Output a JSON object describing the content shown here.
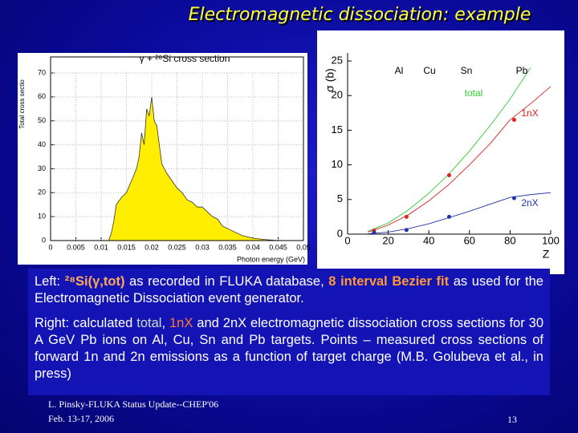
{
  "title": "Electromagnetic dissociation: example",
  "chart_data": [
    {
      "type": "area",
      "title": "γ + ²⁸Si cross section",
      "ylabel": "Total cross sectio",
      "xlabel": "Photon energy (GeV)",
      "color": "#ffee00",
      "grid": true,
      "x": [
        0.0115,
        0.012,
        0.0125,
        0.013,
        0.014,
        0.015,
        0.016,
        0.017,
        0.0175,
        0.018,
        0.0185,
        0.019,
        0.0195,
        0.02,
        0.0205,
        0.021,
        0.0215,
        0.022,
        0.023,
        0.024,
        0.025,
        0.026,
        0.027,
        0.028,
        0.029,
        0.03,
        0.031,
        0.032,
        0.033,
        0.034,
        0.035,
        0.036,
        0.038,
        0.04,
        0.042,
        0.045
      ],
      "values": [
        0,
        3,
        8,
        15,
        18,
        20,
        25,
        30,
        35,
        45,
        40,
        55,
        52,
        60,
        50,
        48,
        40,
        32,
        28,
        25,
        22,
        20,
        17,
        16,
        14,
        14,
        12,
        10,
        9,
        6,
        5,
        4,
        2,
        1,
        0.5,
        0
      ],
      "xlim": [
        0,
        0.05
      ],
      "xticks": [
        0,
        0.005,
        0.01,
        0.015,
        0.02,
        0.025,
        0.03,
        0.035,
        0.04,
        0.045,
        0.05
      ],
      "ylim": [
        0,
        70
      ],
      "yticks": [
        0,
        10,
        20,
        30,
        40,
        50,
        60,
        70
      ]
    },
    {
      "type": "line",
      "ylabel": "σ (b)",
      "xlabel": "Z",
      "annotations": [
        "Al",
        "Cu",
        "Sn",
        "Pb"
      ],
      "x": [
        10,
        20,
        30,
        40,
        50,
        60,
        70,
        80,
        90,
        100
      ],
      "points_x": [
        13,
        29,
        50,
        82
      ],
      "series": [
        {
          "name": "total",
          "color": "#33cc33",
          "values": [
            0.4,
            1.6,
            3.5,
            5.9,
            8.7,
            12,
            15.6,
            19.5,
            24,
            null
          ]
        },
        {
          "name": "1nX",
          "color": "#dd2222",
          "values": [
            0.3,
            1.3,
            2.8,
            4.8,
            7.2,
            10,
            13,
            16.5,
            18.8,
            21.3
          ],
          "points": [
            0.5,
            2.5,
            8.5,
            16.5
          ]
        },
        {
          "name": "2nX",
          "color": "#2233aa",
          "values": [
            0.05,
            0.3,
            0.8,
            1.5,
            2.4,
            3.3,
            4.3,
            5.3,
            5.7,
            6
          ],
          "points": [
            0.2,
            0.6,
            2.5,
            5.2
          ]
        }
      ],
      "xlim": [
        0,
        100
      ],
      "xticks": [
        0,
        20,
        40,
        60,
        80,
        100
      ],
      "ylim": [
        0,
        25
      ],
      "yticks": [
        0,
        5,
        10,
        15,
        20,
        25
      ]
    }
  ],
  "left_text": [
    "Left: ",
    "²⁸Si(γ,tot)",
    " as recorded in FLUKA database, ",
    "8 interval Bezier fit",
    " as used for the Electromagnetic Dissociation event generator."
  ],
  "right_text": [
    "Right: calculated ",
    "total",
    ", ",
    "1nX",
    " and 2nX electromagnetic dissociation cross sections for 30 A GeV Pb ions on Al, Cu, Sn and Pb targets. Points – measured cross sections of forward 1n and 2n emissions as a function of target charge (M.B. Golubeva et al., in press)"
  ],
  "footer": {
    "line1": "L. Pinsky-FLUKA Status Update--CHEP'06",
    "line2": "Feb. 13-17, 2006",
    "page": "13"
  }
}
